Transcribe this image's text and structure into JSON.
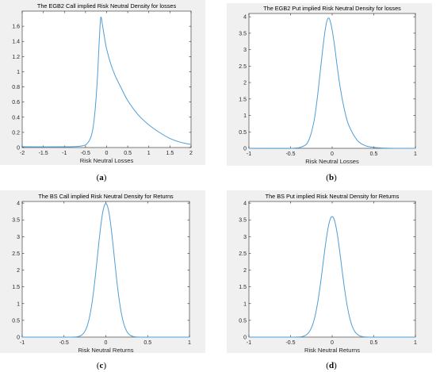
{
  "chart_data": [
    {
      "type": "line",
      "title": "The EGB2 Call implied Risk Neutral Density for losses",
      "xlabel": "Risk Neutral Losses",
      "ylabel": "",
      "xlim": [
        -2,
        2
      ],
      "ylim": [
        0,
        1.8
      ],
      "xticks": [
        "-2",
        "-1.5",
        "-1",
        "-0.5",
        "0",
        "0.5",
        "1",
        "1.5",
        "2"
      ],
      "yticks": [
        "0",
        "0.2",
        "0.4",
        "0.6",
        "0.8",
        "1",
        "1.2",
        "1.4",
        "1.6"
      ],
      "caption_letter": "a",
      "series": [
        {
          "color": "#4f9dd6",
          "x": [
            -2.0,
            -1.0,
            -0.6,
            -0.45,
            -0.35,
            -0.28,
            -0.22,
            -0.18,
            -0.15,
            -0.13,
            -0.1,
            -0.05,
            0.0,
            0.1,
            0.2,
            0.35,
            0.5,
            0.75,
            1.0,
            1.25,
            1.5,
            1.75,
            2.0
          ],
          "y": [
            0.01,
            0.01,
            0.02,
            0.06,
            0.18,
            0.45,
            0.9,
            1.35,
            1.65,
            1.72,
            1.62,
            1.45,
            1.3,
            1.1,
            0.95,
            0.78,
            0.62,
            0.43,
            0.3,
            0.2,
            0.12,
            0.07,
            0.04
          ]
        }
      ]
    },
    {
      "type": "line",
      "title": "The EGB2 Put implied Risk Neutral Density for losses",
      "xlabel": "Risk Neutral Losses",
      "ylabel": "",
      "xlim": [
        -1,
        1
      ],
      "ylim": [
        0,
        4.1
      ],
      "xticks": [
        "-1",
        "-0.5",
        "0",
        "0.5",
        "1"
      ],
      "yticks": [
        "0",
        "0.5",
        "1",
        "1.5",
        "2",
        "2.5",
        "3",
        "3.5",
        "4"
      ],
      "caption_letter": "b",
      "series": [
        {
          "color": "#4f9dd6",
          "x": [
            -1.0,
            -0.5,
            -0.35,
            -0.28,
            -0.22,
            -0.18,
            -0.14,
            -0.1,
            -0.07,
            -0.05,
            -0.03,
            0.0,
            0.03,
            0.06,
            0.1,
            0.15,
            0.2,
            0.3,
            0.4,
            0.5,
            0.6,
            0.8,
            1.0
          ],
          "y": [
            0.0,
            0.0,
            0.06,
            0.25,
            0.8,
            1.5,
            2.4,
            3.3,
            3.8,
            3.95,
            3.92,
            3.6,
            3.1,
            2.5,
            1.8,
            1.15,
            0.7,
            0.25,
            0.08,
            0.03,
            0.01,
            0.0,
            0.0
          ]
        }
      ]
    },
    {
      "type": "line",
      "title": "The BS Call implied Risk Neutral Density for Returns",
      "xlabel": "Risk Neutral Returns",
      "ylabel": "",
      "xlim": [
        -1,
        1
      ],
      "ylim": [
        0,
        4.05
      ],
      "xticks": [
        "-1",
        "-0.5",
        "0",
        "0.5",
        "1"
      ],
      "yticks": [
        "0",
        "0.5",
        "1",
        "1.5",
        "2",
        "2.5",
        "3",
        "3.5",
        "4"
      ],
      "caption_letter": "c",
      "series": [
        {
          "color": "#4f9dd6",
          "distribution": "normal",
          "mean": 0.0,
          "sd": 0.1,
          "peak": 3.99
        }
      ]
    },
    {
      "type": "line",
      "title": "The BS Put implied Risk Neutral Density for Returns",
      "xlabel": "Risk Neutral Returns",
      "ylabel": "",
      "xlim": [
        -1,
        1
      ],
      "ylim": [
        0,
        4.05
      ],
      "xticks": [
        "-1",
        "-0.5",
        "0",
        "0.5",
        "1"
      ],
      "yticks": [
        "0",
        "0.5",
        "1",
        "1.5",
        "2",
        "2.5",
        "3",
        "3.5",
        "4"
      ],
      "caption_letter": "d",
      "series": [
        {
          "color": "#4f9dd6",
          "distribution": "normal",
          "mean": 0.0,
          "sd": 0.11,
          "peak": 3.6
        }
      ]
    }
  ]
}
